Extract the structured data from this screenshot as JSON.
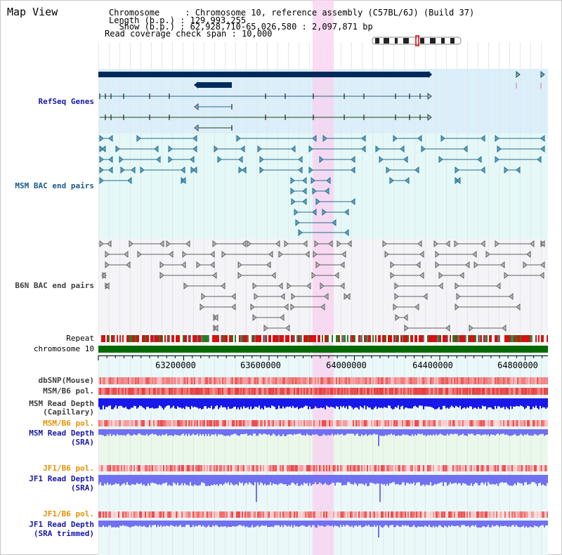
{
  "title": "Map View",
  "info": {
    "chromosome_line": "Chromosome     : Chromosome 10, reference assembly (C57BL/6J) (Build 37)",
    "length_line": "Length (b.p.) : 129,993,255",
    "show_line": "  Show (b.p.) : 62,928,710-65,026,580 : 2,097,871 bp",
    "coverage_line": "Read coverage check span : 10,000"
  },
  "tracks": {
    "refseq": "RefSeq Genes",
    "msm_bac": "MSM BAC end pairs",
    "b6n_bac": "B6N BAC end pairs",
    "repeat": "Repeat",
    "chromosome": "chromosome 10",
    "dbsnp": "dbSNP(Mouse)",
    "msm_b6_pol_1": "MSM/B6 pol.",
    "msm_read_depth_cap_1": "MSM Read Depth",
    "msm_read_depth_cap_2": "(Capillary)",
    "msm_b6_pol_2": "MSM/B6 pol.",
    "msm_read_depth_sra_1": "MSM Read Depth",
    "msm_read_depth_sra_2": "(SRA)",
    "jf1_b6_pol_1": "JF1/B6 pol.",
    "jf1_read_depth_sra_1": "JF1 Read Depth",
    "jf1_read_depth_sra_2": "(SRA)",
    "jf1_b6_pol_2": "JF1/B6 pol.",
    "jf1_read_depth_trim_1": "JF1 Read Depth",
    "jf1_read_depth_trim_2": "(SRA trimmed)"
  },
  "axis_ticks": [
    "63200000",
    "63600000",
    "64000000",
    "64400000",
    "64800000"
  ],
  "colors": {
    "refseq_bg": "#dbeffa",
    "msm_bac_bg": "#e4f8f8",
    "b6n_bac_bg": "#f4f4f8",
    "highlight": "#f8d0f0",
    "gene_dark": "#002a5c",
    "msm_line": "#2a6a8a",
    "b6n_line": "#606060",
    "chromosome_bar": "#006a00",
    "depth_blue": "#1818e8",
    "depth_light": "#7070f0",
    "label_blue": "#1818a8",
    "label_orange": "#e89000",
    "label_gray": "#404040"
  }
}
